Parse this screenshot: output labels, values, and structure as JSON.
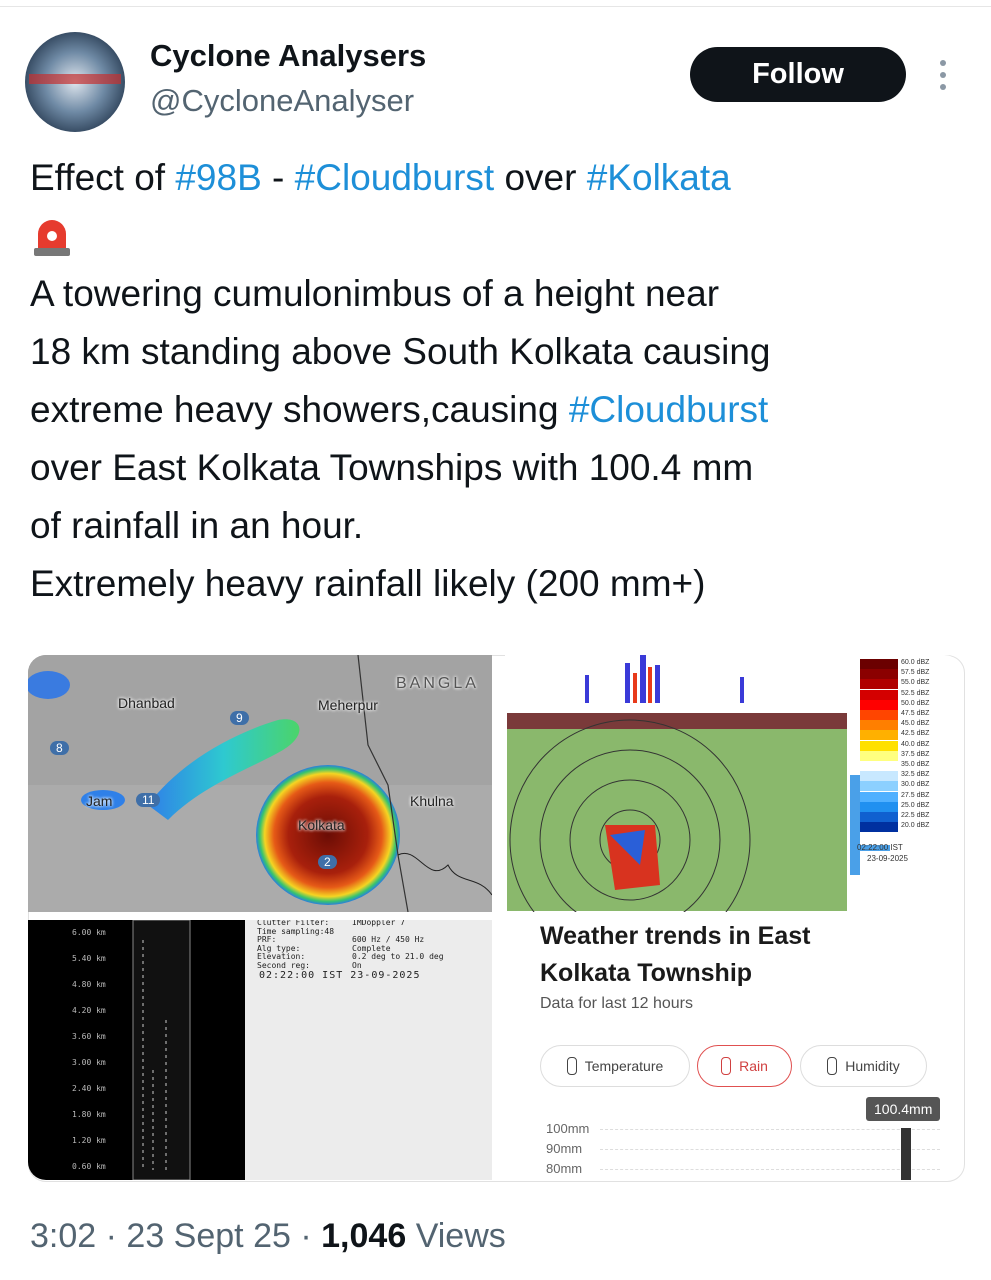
{
  "header": {
    "name": "Cyclone Analysers",
    "handle": "@CycloneAnalyser",
    "follow": "Follow"
  },
  "tweet": {
    "lines": [
      [
        "Effect of ",
        "#98B",
        " - ",
        "#Cloudburst",
        " over ",
        "#Kolkata"
      ],
      [],
      [
        "A towering cumulonimbus of a height near"
      ],
      [
        "18 km standing above South Kolkata causing"
      ],
      [
        "extreme heavy showers,causing ",
        "#Cloudburst"
      ],
      [
        "over East Kolkata Townships with 100.4 mm"
      ],
      [
        "of rainfall in an hour."
      ],
      [
        "Extremely heavy rainfall likely (200 mm+)"
      ]
    ]
  },
  "map": {
    "labels": [
      "Dhanbad",
      "Meherpur",
      "BANGLA",
      "Kolkata",
      "Khulna",
      "Jam",
      "11",
      "9",
      "8",
      "2"
    ]
  },
  "radar": {
    "legend": [
      "60.0 dBZ",
      "57.5 dBZ",
      "55.0 dBZ",
      "52.5 dBZ",
      "50.0 dBZ",
      "47.5 dBZ",
      "45.0 dBZ",
      "42.5 dBZ",
      "40.0 dBZ",
      "37.5 dBZ",
      "35.0 dBZ",
      "32.5 dBZ",
      "30.0 dBZ",
      "27.5 dBZ",
      "25.0 dBZ",
      "22.5 dBZ",
      "20.0 dBZ"
    ],
    "time": "02:22:00 IST",
    "date": "23-09-2025"
  },
  "profile": {
    "heights": [
      "6.00 km",
      "5.40 km",
      "4.80 km",
      "4.20 km",
      "3.60 km",
      "3.00 km",
      "2.40 km",
      "1.80 km",
      "1.20 km",
      "0.60 km"
    ]
  },
  "meta": {
    "rows": [
      [
        "Clutter Filter:",
        "IMDoppler 7"
      ],
      [
        "Time sampling:48",
        ""
      ],
      [
        "PRF:",
        "600 Hz / 450 Hz"
      ],
      [
        "Alg type:",
        "Complete"
      ],
      [
        "Elevation:",
        "0.2 deg to 21.0 deg"
      ],
      [
        "Second reg:",
        "On"
      ]
    ],
    "stamp": "02:22:00 IST 23-09-2025"
  },
  "weather": {
    "title_lines": [
      "Weather trends in East",
      "Kolkata Township"
    ],
    "subtitle": "Data for last 12 hours",
    "chips": [
      "Temperature",
      "Rain",
      "Humidity"
    ],
    "tooltip": "100.4mm",
    "axis": [
      "100mm",
      "90mm",
      "80mm"
    ]
  },
  "footer": {
    "time": "3:02",
    "separator": "·",
    "date": "23 Sept 25",
    "views_count": "1,046",
    "views_label": "Views"
  }
}
